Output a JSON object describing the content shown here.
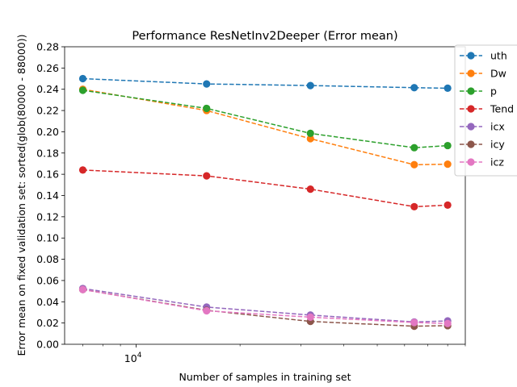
{
  "chart_data": {
    "type": "line",
    "title": "Performance ResNetInv2Deeper (Error mean)",
    "xlabel": "Number of samples in training set",
    "ylabel": "Error mean on fixed validation set: sorted(glob(80000 - 88000))",
    "xscale": "log",
    "xlim": [
      6200,
      90000
    ],
    "ylim": [
      0,
      0.28
    ],
    "yticks": [
      "0.00",
      "0.02",
      "0.04",
      "0.06",
      "0.08",
      "0.10",
      "0.12",
      "0.14",
      "0.16",
      "0.18",
      "0.20",
      "0.22",
      "0.24",
      "0.26",
      "0.28"
    ],
    "xtick_major_label": "10^4",
    "x": [
      7000,
      16000,
      32000,
      64000,
      80000
    ],
    "legend_position": "right, outside top",
    "grid": false,
    "series": [
      {
        "name": "uth",
        "color": "#1f77b4",
        "values": [
          0.25,
          0.245,
          0.2435,
          0.2415,
          0.241
        ]
      },
      {
        "name": "Dw",
        "color": "#ff7f0e",
        "values": [
          0.24,
          0.22,
          0.1935,
          0.169,
          0.1695
        ]
      },
      {
        "name": "p",
        "color": "#2ca02c",
        "values": [
          0.239,
          0.222,
          0.1985,
          0.185,
          0.187
        ]
      },
      {
        "name": "Tend",
        "color": "#d62728",
        "values": [
          0.164,
          0.1585,
          0.146,
          0.1295,
          0.131
        ]
      },
      {
        "name": "icx",
        "color": "#9467bd",
        "values": [
          0.0525,
          0.035,
          0.0275,
          0.021,
          0.022
        ]
      },
      {
        "name": "icy",
        "color": "#8c564b",
        "values": [
          0.0515,
          0.032,
          0.0215,
          0.017,
          0.0175
        ]
      },
      {
        "name": "icz",
        "color": "#e377c2",
        "values": [
          0.0515,
          0.0315,
          0.0255,
          0.0205,
          0.0195
        ]
      }
    ]
  }
}
